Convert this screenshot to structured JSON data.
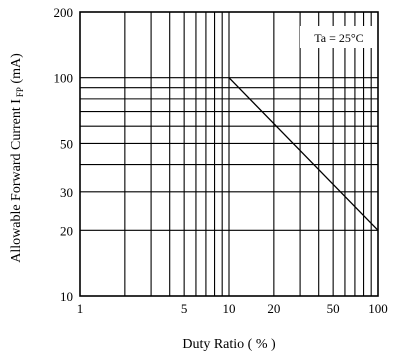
{
  "chart_data": {
    "type": "line",
    "title": "",
    "xlabel": "Duty Ratio ( % )",
    "ylabel_main": "Allowable  Forward Current I",
    "ylabel_sub": "FP",
    "ylabel_unit": " (mA)",
    "xscale": "log",
    "yscale": "log",
    "xlim": [
      1,
      100
    ],
    "ylim": [
      10,
      200
    ],
    "grid": true,
    "x_ticks": [
      {
        "value": 1,
        "label": "1"
      },
      {
        "value": 5,
        "label": "5"
      },
      {
        "value": 10,
        "label": "10"
      },
      {
        "value": 20,
        "label": "20"
      },
      {
        "value": 50,
        "label": "50"
      },
      {
        "value": 100,
        "label": "100"
      }
    ],
    "y_ticks": [
      {
        "value": 10,
        "label": "10"
      },
      {
        "value": 20,
        "label": "20"
      },
      {
        "value": 30,
        "label": "30"
      },
      {
        "value": 50,
        "label": "50"
      },
      {
        "value": 100,
        "label": "100"
      },
      {
        "value": 200,
        "label": "200"
      }
    ],
    "x_grid": [
      2,
      3,
      4,
      5,
      6,
      7,
      8,
      9,
      10,
      20,
      30,
      40,
      50,
      60,
      70,
      80,
      90
    ],
    "y_grid": [
      20,
      30,
      40,
      50,
      60,
      70,
      80,
      90,
      100
    ],
    "series": [
      {
        "x": [
          10,
          100
        ],
        "y": [
          100,
          20
        ]
      }
    ],
    "annotation": {
      "text": "Ta = 25°C",
      "placement": "top-right"
    }
  }
}
